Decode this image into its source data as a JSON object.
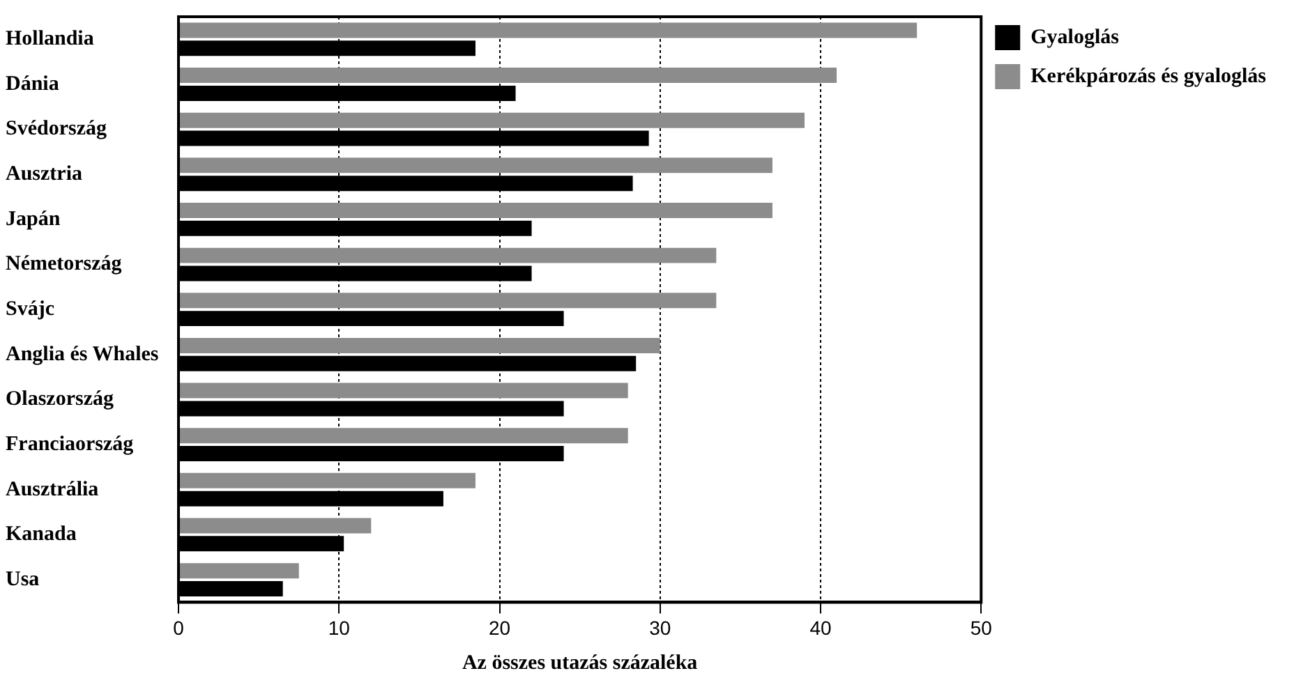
{
  "chart_data": {
    "type": "bar",
    "orientation": "horizontal",
    "xlabel": "Az összes utazás százaléka",
    "categories": [
      "Hollandia",
      "Dánia",
      "Svédország",
      "Ausztria",
      "Japán",
      "Németország",
      "Svájc",
      "Anglia és Whales",
      "Olaszország",
      "Franciaország",
      "Ausztrália",
      "Kanada",
      "Usa"
    ],
    "series": [
      {
        "name": "Gyaloglás",
        "color": "#000000",
        "values": [
          18.5,
          21,
          29.3,
          28.3,
          22,
          22,
          24,
          28.5,
          24,
          24,
          16.5,
          10.3,
          6.5
        ]
      },
      {
        "name": "Kerékpározás és gyaloglás",
        "color": "#8c8c8c",
        "values": [
          46,
          41,
          39,
          37,
          37,
          33.5,
          33.5,
          30,
          28,
          28,
          18.5,
          12,
          7.5
        ]
      }
    ],
    "xlim": [
      0,
      50
    ],
    "xticks": [
      0,
      10,
      20,
      30,
      40,
      50
    ],
    "grid": "x",
    "legend": "top right"
  }
}
